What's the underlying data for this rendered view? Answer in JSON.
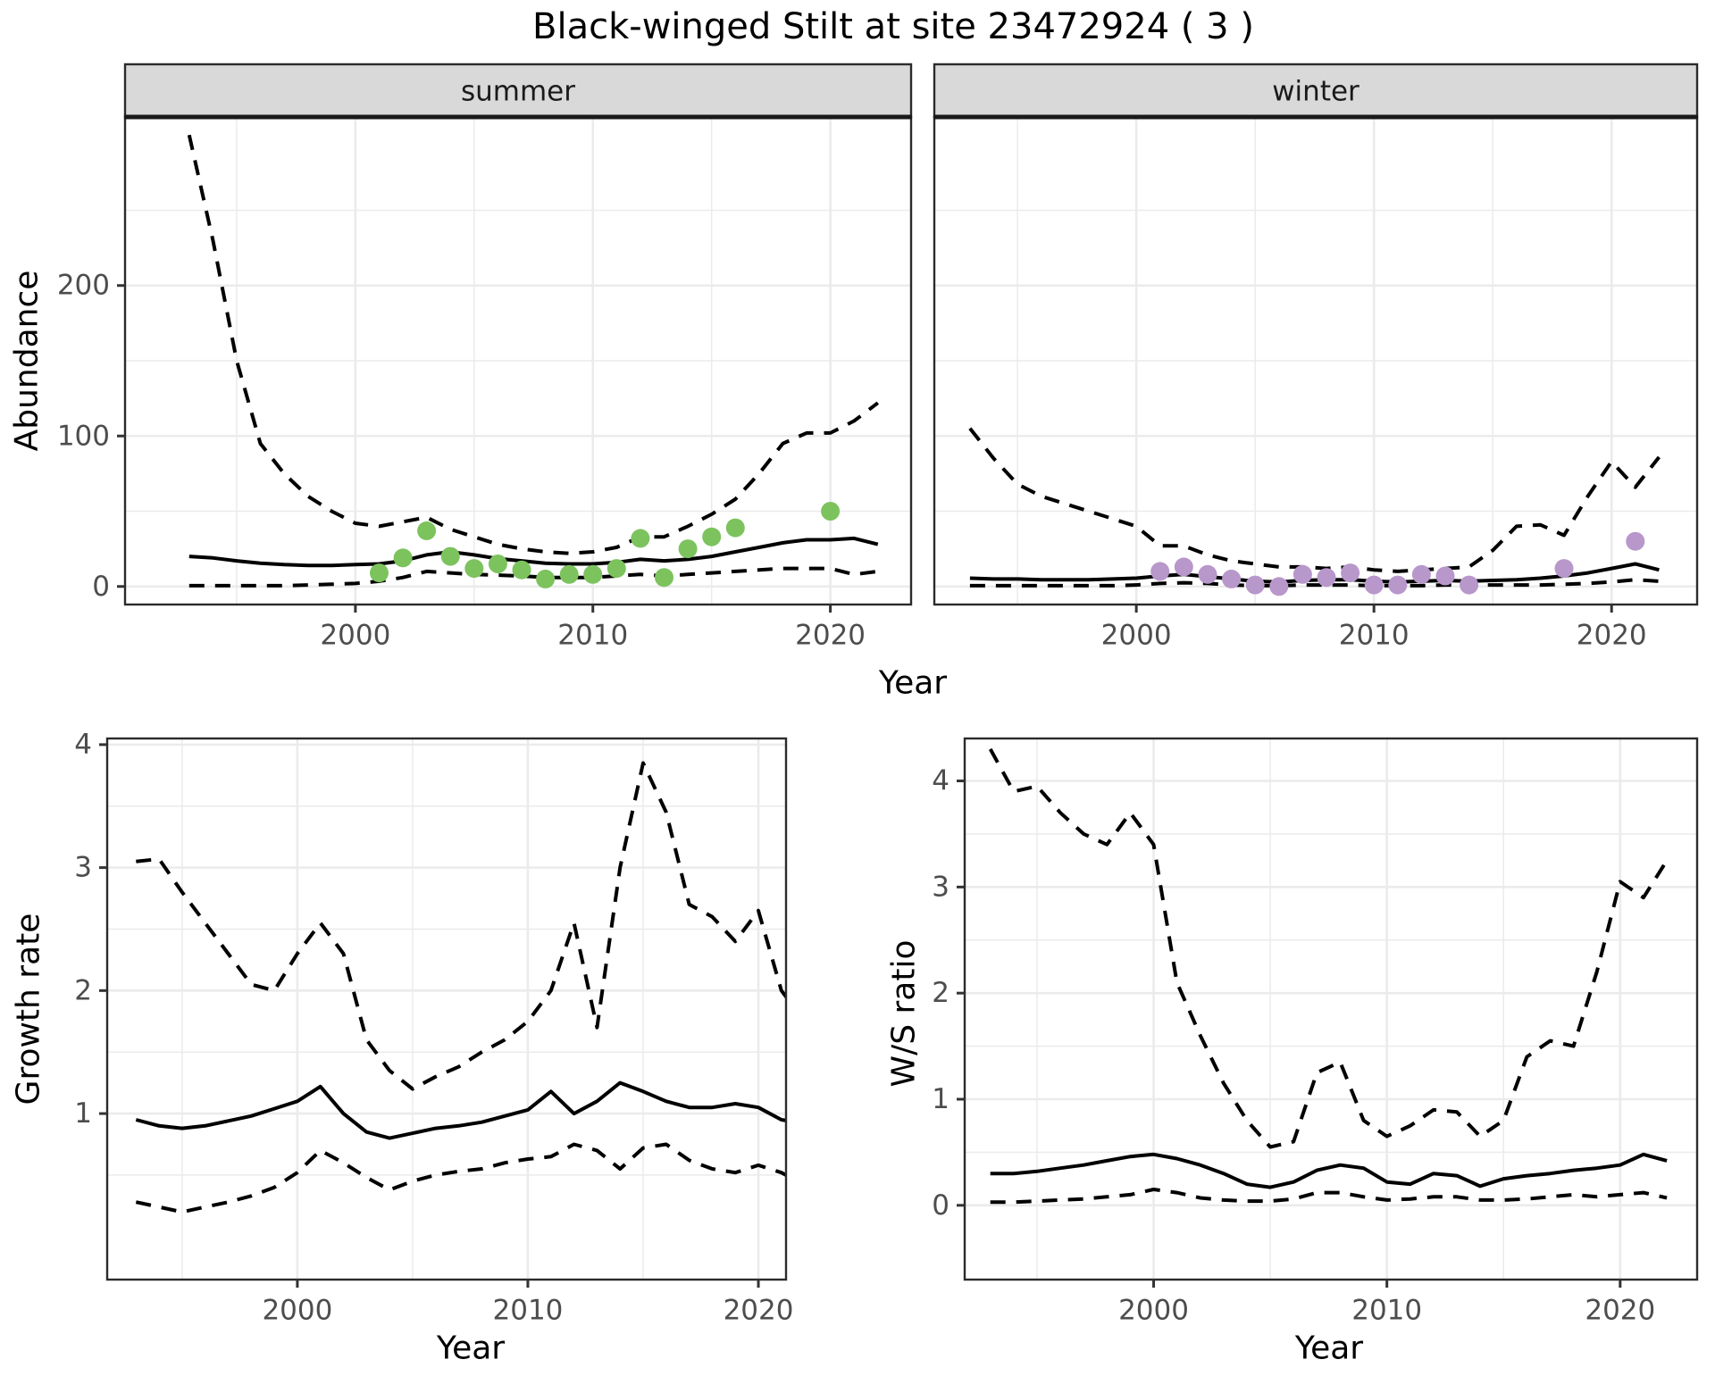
{
  "title": "Black-winged Stilt at site 23472924 ( 3 )",
  "labels": {
    "y_abundance": "Abundance",
    "x_year": "Year",
    "y_growth": "Growth rate",
    "y_ws": "W/S ratio"
  },
  "facets": [
    "summer",
    "winter"
  ],
  "colors": {
    "summer_points": "#7cc35e",
    "winter_points": "#b897cb",
    "line": "#000000",
    "grid": "#ebebeb",
    "panel_border": "#2b2b2b",
    "strip_bg": "#d9d9d9",
    "tick_label": "#4d4d4d"
  },
  "chart_data": [
    {
      "id": "abundance-summer",
      "type": "line",
      "facet_label": "summer",
      "xlabel": "Year",
      "ylabel": "Abundance",
      "x": [
        1993,
        1994,
        1995,
        1996,
        1997,
        1998,
        1999,
        2000,
        2001,
        2002,
        2003,
        2004,
        2005,
        2006,
        2007,
        2008,
        2009,
        2010,
        2011,
        2012,
        2013,
        2014,
        2015,
        2016,
        2017,
        2018,
        2019,
        2020,
        2021,
        2022
      ],
      "series": [
        {
          "name": "mean",
          "style": "solid",
          "values": [
            20,
            19,
            17,
            15.5,
            14.5,
            14,
            14,
            14.5,
            15,
            17,
            21,
            23,
            21,
            18.5,
            17,
            15.5,
            15,
            15,
            16,
            18,
            17,
            18,
            20,
            23,
            26,
            29,
            31,
            31,
            32,
            28
          ]
        },
        {
          "name": "upper_ci",
          "style": "dashed",
          "values": [
            300,
            230,
            150,
            95,
            75,
            60,
            50,
            42,
            40,
            43,
            46,
            38,
            33,
            28,
            25,
            23,
            22,
            23,
            26,
            33,
            33,
            40,
            48,
            58,
            75,
            95,
            102,
            102,
            110,
            122
          ]
        },
        {
          "name": "lower_ci",
          "style": "dashed",
          "values": [
            0.5,
            0.5,
            0.5,
            0.5,
            0.5,
            1,
            1.5,
            2,
            3.5,
            6,
            10,
            9,
            8,
            7.5,
            7,
            6,
            6,
            6,
            7,
            8,
            7,
            8,
            9,
            10,
            11,
            12,
            12,
            12,
            8,
            10
          ]
        }
      ],
      "points": {
        "x": [
          2001,
          2002,
          2003,
          2004,
          2005,
          2006,
          2007,
          2008,
          2009,
          2010,
          2011,
          2012,
          2013,
          2014,
          2015,
          2016,
          2020
        ],
        "y": [
          9,
          19,
          37,
          20,
          12,
          15,
          11,
          5,
          8,
          8,
          12,
          32,
          6,
          25,
          33,
          39,
          50
        ],
        "color": "#7cc35e"
      },
      "xlim": [
        1990.3,
        2023.4
      ],
      "ylim": [
        -12,
        312
      ],
      "x_ticks": [
        2000,
        2010,
        2020
      ],
      "y_ticks": [
        0,
        100,
        200
      ],
      "x_minor": [
        1995,
        2005,
        2015
      ],
      "y_minor": [
        50,
        150,
        250
      ],
      "show_y_tick_labels": true
    },
    {
      "id": "abundance-winter",
      "type": "line",
      "facet_label": "winter",
      "xlabel": "Year",
      "ylabel": "Abundance",
      "x": [
        1993,
        1994,
        1995,
        1996,
        1997,
        1998,
        1999,
        2000,
        2001,
        2002,
        2003,
        2004,
        2005,
        2006,
        2007,
        2008,
        2009,
        2010,
        2011,
        2012,
        2013,
        2014,
        2015,
        2016,
        2017,
        2018,
        2019,
        2020,
        2021,
        2022
      ],
      "series": [
        {
          "name": "mean",
          "style": "solid",
          "values": [
            5.5,
            5,
            5,
            4.5,
            4.5,
            4.5,
            5,
            5.5,
            7,
            8,
            6.5,
            5,
            3.5,
            3,
            4,
            4.5,
            4.5,
            3.5,
            3,
            3.5,
            4,
            3.5,
            4,
            4.5,
            5.5,
            7,
            9,
            12,
            15,
            11
          ]
        },
        {
          "name": "upper_ci",
          "style": "dashed",
          "values": [
            105,
            85,
            68,
            60,
            55,
            50,
            45,
            40,
            27,
            27,
            21,
            17,
            15,
            13,
            13,
            12,
            13,
            11,
            10,
            11,
            12,
            13,
            24,
            40,
            41,
            34,
            60,
            83,
            66,
            86
          ]
        },
        {
          "name": "lower_ci",
          "style": "dashed",
          "values": [
            0.5,
            0.5,
            0.5,
            0.5,
            0.5,
            0.5,
            0.5,
            1,
            2,
            2.5,
            2,
            1,
            0.5,
            0.5,
            1,
            1,
            1,
            0.5,
            0.5,
            0.5,
            1,
            1,
            1,
            1,
            1,
            1.5,
            2,
            3,
            4.5,
            3.5
          ]
        }
      ],
      "points": {
        "x": [
          2001,
          2002,
          2003,
          2004,
          2005,
          2006,
          2007,
          2008,
          2009,
          2010,
          2011,
          2012,
          2013,
          2014,
          2018,
          2021
        ],
        "y": [
          10,
          13,
          8,
          5,
          1,
          0,
          8,
          6,
          9,
          1,
          1,
          8,
          7,
          1,
          12,
          30
        ],
        "color": "#b897cb"
      },
      "xlim": [
        1991.5,
        2023.6
      ],
      "ylim": [
        -12,
        312
      ],
      "x_ticks": [
        2000,
        2010,
        2020
      ],
      "y_ticks": [
        0,
        100,
        200
      ],
      "x_minor": [
        1995,
        2005,
        2015
      ],
      "y_minor": [
        50,
        150,
        250
      ],
      "show_y_tick_labels": false
    },
    {
      "id": "growth-rate",
      "type": "line",
      "facet_label": null,
      "xlabel": "Year",
      "ylabel": "Growth rate",
      "x": [
        1993,
        1994,
        1995,
        1996,
        1997,
        1998,
        1999,
        2000,
        2001,
        2002,
        2003,
        2004,
        2005,
        2006,
        2007,
        2008,
        2009,
        2010,
        2011,
        2012,
        2013,
        2014,
        2015,
        2016,
        2017,
        2018,
        2019,
        2020,
        2021,
        2022
      ],
      "series": [
        {
          "name": "mean",
          "style": "solid",
          "values": [
            0.95,
            0.9,
            0.88,
            0.9,
            0.94,
            0.98,
            1.04,
            1.1,
            1.22,
            1.0,
            0.85,
            0.8,
            0.84,
            0.88,
            0.9,
            0.93,
            0.98,
            1.03,
            1.18,
            1.0,
            1.1,
            1.25,
            1.18,
            1.1,
            1.05,
            1.05,
            1.08,
            1.05,
            0.95,
            0.92
          ]
        },
        {
          "name": "upper_ci",
          "style": "dashed",
          "values": [
            3.05,
            3.07,
            2.8,
            2.55,
            2.3,
            2.05,
            2.0,
            2.3,
            2.55,
            2.3,
            1.6,
            1.35,
            1.2,
            1.3,
            1.38,
            1.5,
            1.6,
            1.75,
            2.0,
            2.55,
            1.7,
            3.0,
            3.85,
            3.45,
            2.7,
            2.6,
            2.4,
            2.65,
            2.0,
            1.75
          ]
        },
        {
          "name": "lower_ci",
          "style": "dashed",
          "values": [
            0.28,
            0.24,
            0.2,
            0.24,
            0.28,
            0.33,
            0.4,
            0.52,
            0.7,
            0.6,
            0.48,
            0.38,
            0.45,
            0.5,
            0.53,
            0.55,
            0.6,
            0.63,
            0.65,
            0.75,
            0.7,
            0.55,
            0.72,
            0.75,
            0.62,
            0.55,
            0.52,
            0.58,
            0.52,
            0.42
          ]
        }
      ],
      "points": null,
      "xlim": [
        1991.75,
        2021.2
      ],
      "ylim": [
        -0.35,
        4.05
      ],
      "x_ticks": [
        2000,
        2010,
        2020
      ],
      "y_ticks": [
        1,
        2,
        3,
        4
      ],
      "x_minor": [
        1995,
        2005,
        2015
      ],
      "y_minor": [
        0.5,
        1.5,
        2.5,
        3.5
      ],
      "show_y_tick_labels": true
    },
    {
      "id": "ws-ratio",
      "type": "line",
      "facet_label": null,
      "xlabel": "Year",
      "ylabel": "W/S ratio",
      "x": [
        1993,
        1994,
        1995,
        1996,
        1997,
        1998,
        1999,
        2000,
        2001,
        2002,
        2003,
        2004,
        2005,
        2006,
        2007,
        2008,
        2009,
        2010,
        2011,
        2012,
        2013,
        2014,
        2015,
        2016,
        2017,
        2018,
        2019,
        2020,
        2021,
        2022
      ],
      "series": [
        {
          "name": "mean",
          "style": "solid",
          "values": [
            0.3,
            0.3,
            0.32,
            0.35,
            0.38,
            0.42,
            0.46,
            0.48,
            0.44,
            0.38,
            0.3,
            0.2,
            0.17,
            0.22,
            0.33,
            0.38,
            0.35,
            0.22,
            0.2,
            0.3,
            0.28,
            0.18,
            0.25,
            0.28,
            0.3,
            0.33,
            0.35,
            0.38,
            0.48,
            0.42
          ]
        },
        {
          "name": "upper_ci",
          "style": "dashed",
          "values": [
            4.3,
            3.9,
            3.95,
            3.7,
            3.5,
            3.4,
            3.7,
            3.4,
            2.1,
            1.6,
            1.15,
            0.8,
            0.55,
            0.6,
            1.25,
            1.35,
            0.8,
            0.65,
            0.75,
            0.9,
            0.88,
            0.65,
            0.8,
            1.4,
            1.55,
            1.5,
            2.2,
            3.05,
            2.9,
            3.25
          ]
        },
        {
          "name": "lower_ci",
          "style": "dashed",
          "values": [
            0.03,
            0.03,
            0.04,
            0.05,
            0.06,
            0.08,
            0.1,
            0.15,
            0.12,
            0.07,
            0.05,
            0.04,
            0.04,
            0.06,
            0.12,
            0.12,
            0.08,
            0.05,
            0.06,
            0.08,
            0.08,
            0.05,
            0.05,
            0.06,
            0.08,
            0.1,
            0.08,
            0.1,
            0.12,
            0.07
          ]
        }
      ],
      "points": null,
      "xlim": [
        1991.9,
        2023.3
      ],
      "ylim": [
        -0.7,
        4.4
      ],
      "x_ticks": [
        2000,
        2010,
        2020
      ],
      "y_ticks": [
        0,
        1,
        2,
        3,
        4
      ],
      "x_minor": [
        1995,
        2005,
        2015
      ],
      "y_minor": [
        0.5,
        1.5,
        2.5,
        3.5
      ],
      "show_y_tick_labels": true
    }
  ]
}
